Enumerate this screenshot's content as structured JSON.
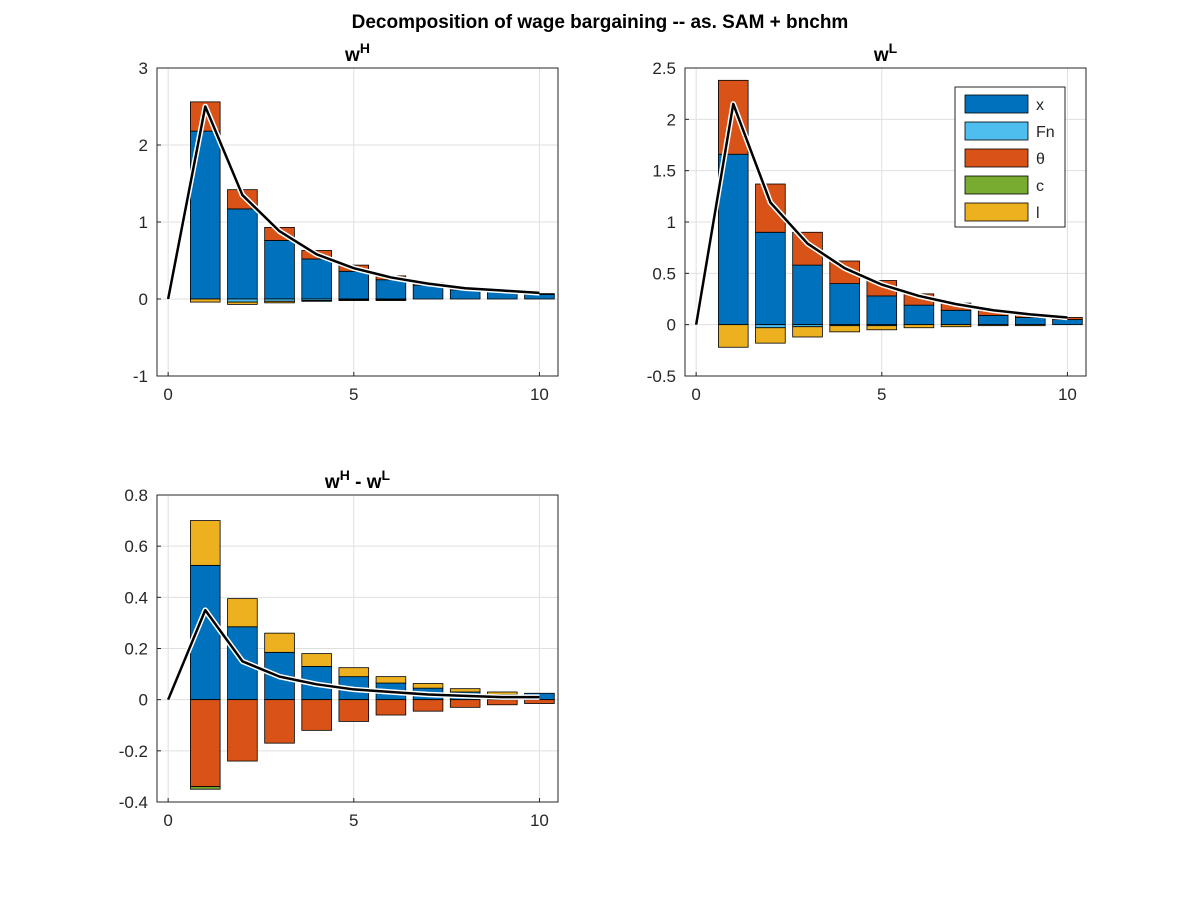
{
  "figure_title": "Decomposition of wage bargaining -- as. SAM + bnchm",
  "colors": {
    "x": "#0072BD",
    "Fn": "#4DBEEE",
    "theta": "#D95319",
    "c": "#77AC30",
    "l": "#EDB120",
    "line": "#000000"
  },
  "legend": {
    "placement": "upper-right of panel 2",
    "entries": [
      {
        "key": "x",
        "label": "x"
      },
      {
        "key": "Fn",
        "label": "Fn"
      },
      {
        "key": "theta",
        "label": "θ"
      },
      {
        "key": "c",
        "label": "c"
      },
      {
        "key": "l",
        "label": "l"
      }
    ]
  },
  "chart_data": [
    {
      "type": "bar",
      "stacked": true,
      "title": "w",
      "title_sup": "H",
      "xlim": [
        -0.3,
        10.5
      ],
      "ylim": [
        -1,
        3
      ],
      "xticks": [
        0,
        5,
        10
      ],
      "yticks": [
        -1,
        0,
        1,
        2,
        3
      ],
      "grid": true,
      "x": [
        1,
        2,
        3,
        4,
        5,
        6,
        7,
        8,
        9,
        10
      ],
      "series": [
        {
          "key": "x",
          "values": [
            2.18,
            1.17,
            0.76,
            0.52,
            0.36,
            0.25,
            0.18,
            0.12,
            0.09,
            0.06
          ]
        },
        {
          "key": "Fn",
          "values": [
            0.0,
            -0.04,
            -0.03,
            -0.02,
            -0.01,
            -0.01,
            0.0,
            0.0,
            0.0,
            0.0
          ]
        },
        {
          "key": "theta",
          "values": [
            0.38,
            0.25,
            0.17,
            0.11,
            0.08,
            0.05,
            0.03,
            0.02,
            0.01,
            0.01
          ]
        },
        {
          "key": "c",
          "values": [
            0.0,
            0.0,
            0.0,
            0.0,
            0.0,
            0.0,
            0.0,
            0.0,
            0.0,
            0.0
          ]
        },
        {
          "key": "l",
          "values": [
            -0.04,
            -0.03,
            -0.02,
            -0.01,
            -0.01,
            -0.01,
            0.0,
            0.0,
            0.0,
            0.0
          ]
        }
      ],
      "total_line": {
        "x": [
          0,
          1,
          2,
          3,
          4,
          5,
          6,
          7,
          8,
          9,
          10
        ],
        "values": [
          0,
          2.5,
          1.35,
          0.88,
          0.58,
          0.4,
          0.28,
          0.2,
          0.14,
          0.11,
          0.08
        ]
      }
    },
    {
      "type": "bar",
      "stacked": true,
      "title": "w",
      "title_sup": "L",
      "xlim": [
        -0.3,
        10.5
      ],
      "ylim": [
        -0.5,
        2.5
      ],
      "xticks": [
        0,
        5,
        10
      ],
      "yticks": [
        -0.5,
        0,
        0.5,
        1,
        1.5,
        2,
        2.5
      ],
      "grid": true,
      "x": [
        1,
        2,
        3,
        4,
        5,
        6,
        7,
        8,
        9,
        10
      ],
      "series": [
        {
          "key": "x",
          "values": [
            1.66,
            0.9,
            0.58,
            0.4,
            0.28,
            0.19,
            0.14,
            0.09,
            0.07,
            0.05
          ]
        },
        {
          "key": "Fn",
          "values": [
            0.0,
            -0.03,
            -0.02,
            -0.01,
            -0.01,
            0.0,
            0.0,
            0.0,
            0.0,
            0.0
          ]
        },
        {
          "key": "theta",
          "values": [
            0.72,
            0.47,
            0.32,
            0.22,
            0.15,
            0.11,
            0.07,
            0.05,
            0.03,
            0.02
          ]
        },
        {
          "key": "c",
          "values": [
            0.0,
            0.0,
            0.0,
            0.0,
            0.0,
            0.0,
            0.0,
            0.0,
            0.0,
            0.0
          ]
        },
        {
          "key": "l",
          "values": [
            -0.22,
            -0.15,
            -0.1,
            -0.06,
            -0.04,
            -0.03,
            -0.02,
            -0.01,
            -0.01,
            0.0
          ]
        }
      ],
      "total_line": {
        "x": [
          0,
          1,
          2,
          3,
          4,
          5,
          6,
          7,
          8,
          9,
          10
        ],
        "values": [
          0,
          2.15,
          1.19,
          0.79,
          0.55,
          0.39,
          0.28,
          0.2,
          0.14,
          0.1,
          0.07
        ]
      }
    },
    {
      "type": "bar",
      "stacked": true,
      "title": "w",
      "title_sup": "H",
      "title_mid": " - w",
      "title_sup2": "L",
      "xlim": [
        -0.3,
        10.5
      ],
      "ylim": [
        -0.4,
        0.8
      ],
      "xticks": [
        0,
        5,
        10
      ],
      "yticks": [
        -0.4,
        -0.2,
        0,
        0.2,
        0.4,
        0.6,
        0.8
      ],
      "grid": true,
      "x": [
        1,
        2,
        3,
        4,
        5,
        6,
        7,
        8,
        9,
        10
      ],
      "series": [
        {
          "key": "x",
          "values": [
            0.525,
            0.285,
            0.185,
            0.13,
            0.09,
            0.065,
            0.045,
            0.03,
            0.02,
            0.025
          ]
        },
        {
          "key": "Fn",
          "values": [
            0.0,
            0.0,
            0.0,
            0.0,
            0.0,
            0.0,
            0.0,
            0.0,
            0.0,
            0.0
          ]
        },
        {
          "key": "theta",
          "values": [
            -0.34,
            -0.24,
            -0.17,
            -0.12,
            -0.085,
            -0.06,
            -0.045,
            -0.03,
            -0.02,
            -0.015
          ]
        },
        {
          "key": "c",
          "values": [
            -0.01,
            0.0,
            0.0,
            0.0,
            0.0,
            0.0,
            0.0,
            0.0,
            0.0,
            0.0
          ]
        },
        {
          "key": "l",
          "values": [
            0.175,
            0.11,
            0.075,
            0.05,
            0.035,
            0.025,
            0.018,
            0.013,
            0.01,
            0.0
          ]
        }
      ],
      "total_line": {
        "x": [
          0,
          1,
          2,
          3,
          4,
          5,
          6,
          7,
          8,
          9,
          10
        ],
        "values": [
          0,
          0.35,
          0.15,
          0.09,
          0.06,
          0.04,
          0.03,
          0.02,
          0.015,
          0.01,
          0.01
        ]
      }
    }
  ]
}
